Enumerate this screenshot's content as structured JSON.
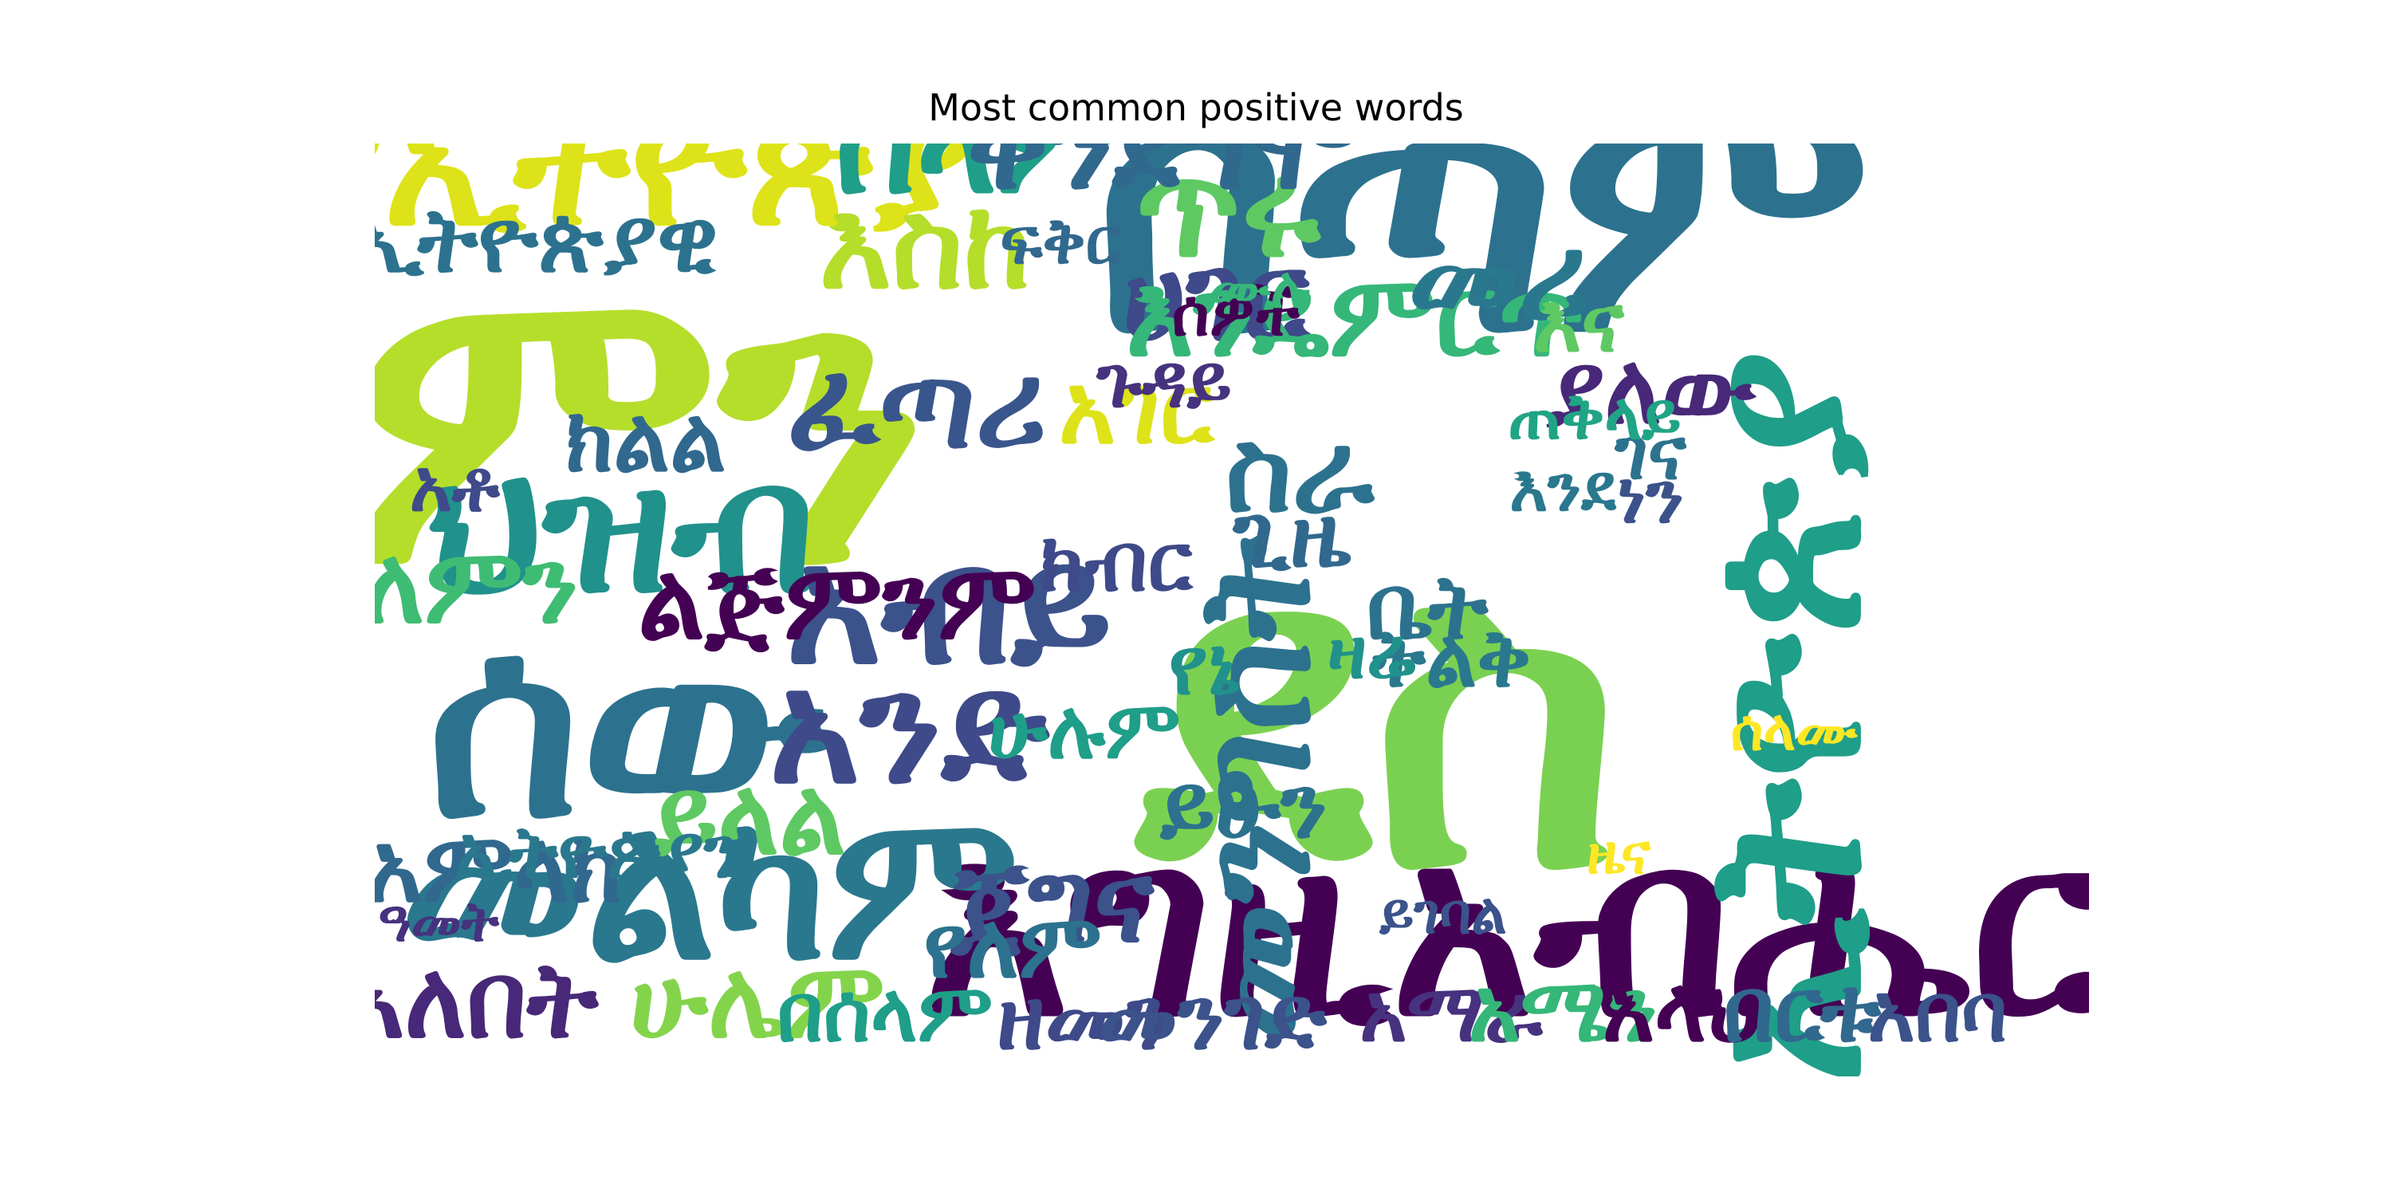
{
  "chart_data": {
    "type": "wordcloud",
    "title": "Most common positive words",
    "colormap": "viridis",
    "words": [
      {
        "text": "ደስ",
        "weight": 100,
        "color": "#7ad151"
      },
      {
        "text": "ምን",
        "weight": 92,
        "color": "#b5de2b"
      },
      {
        "text": "በጣም",
        "weight": 78,
        "color": "#2c728e"
      },
      {
        "text": "ሰው",
        "weight": 60,
        "color": "#2c728e"
      },
      {
        "text": "እግዚአብሔር",
        "weight": 56,
        "color": "#440154"
      },
      {
        "text": "ኢትዮጵያ",
        "weight": 48,
        "color": "#1f9e89"
      },
      {
        "text": "መልካም",
        "weight": 46,
        "color": "#2a788e"
      },
      {
        "text": "ህዝብ",
        "weight": 40,
        "color": "#21918c"
      },
      {
        "text": "የኢትዮጵያ",
        "weight": 38,
        "color": "#dde318"
      },
      {
        "text": "አብይ",
        "weight": 36,
        "color": "#3b528b"
      },
      {
        "text": "መንግስት",
        "weight": 34,
        "color": "#2c728e"
      },
      {
        "text": "አንድ",
        "weight": 34,
        "color": "#3e4a89"
      },
      {
        "text": "ሰላም",
        "weight": 30,
        "color": "#1f9e89"
      },
      {
        "text": "ጥሩ",
        "weight": 30,
        "color": "#5ec962"
      },
      {
        "text": "ቀንደግሞ",
        "weight": 26,
        "color": "#31688e"
      },
      {
        "text": "ፈጣሪ",
        "weight": 26,
        "color": "#39568c"
      },
      {
        "text": "እስከ",
        "weight": 26,
        "color": "#b5de2b"
      },
      {
        "text": "ሀገር",
        "weight": 26,
        "color": "#3e4a89"
      },
      {
        "text": "እንዴምርጥ",
        "weight": 24,
        "color": "#35b779"
      },
      {
        "text": "መሪ",
        "weight": 26,
        "color": "#2a788e"
      },
      {
        "text": "ሁሌም",
        "weight": 22,
        "color": "#84d44b"
      },
      {
        "text": "ልጅምንም",
        "weight": 22,
        "color": "#440154"
      },
      {
        "text": "ይላል",
        "weight": 22,
        "color": "#5ec962"
      },
      {
        "text": "ጀግና",
        "weight": 24,
        "color": "#3b528b"
      },
      {
        "text": "አለበት",
        "weight": 22,
        "color": "#482878"
      },
      {
        "text": "ስራ",
        "weight": 24,
        "color": "#2c728e"
      },
      {
        "text": "አምላክ",
        "weight": 20,
        "color": "#31688e"
      },
      {
        "text": "ለምን",
        "weight": 22,
        "color": "#3fbc73"
      },
      {
        "text": "አገር",
        "weight": 20,
        "color": "#dde318"
      },
      {
        "text": "ኢትዮጵያዊ",
        "weight": 18,
        "color": "#2c728e"
      },
      {
        "text": "ያለው",
        "weight": 20,
        "color": "#482878"
      },
      {
        "text": "ጊዜ",
        "weight": 18,
        "color": "#31688e"
      },
      {
        "text": "ቤት",
        "weight": 18,
        "color": "#2c728e"
      },
      {
        "text": "ትልቅ",
        "weight": 16,
        "color": "#2a788e"
      },
      {
        "text": "ዘመን",
        "weight": 18,
        "color": "#3e4a89"
      },
      {
        "text": "መንገድ",
        "weight": 18,
        "color": "#3b528b"
      },
      {
        "text": "አማራ",
        "weight": 16,
        "color": "#46327e"
      },
      {
        "text": "አሜን",
        "weight": 18,
        "color": "#35b779"
      },
      {
        "text": "አላህ",
        "weight": 18,
        "color": "#440154"
      },
      {
        "text": "በርቱ",
        "weight": 18,
        "color": "#31688e"
      },
      {
        "text": "አበባ",
        "weight": 16,
        "color": "#3b528b"
      },
      {
        "text": "ይሁን",
        "weight": 18,
        "color": "#2c728e"
      },
      {
        "text": "በሰላም",
        "weight": 16,
        "color": "#1f9e89"
      },
      {
        "text": "የለም",
        "weight": 18,
        "color": "#2c728e"
      },
      {
        "text": "ክልል",
        "weight": 18,
        "color": "#31688e"
      },
      {
        "text": "የኔ",
        "weight": 16,
        "color": "#21918c"
      },
      {
        "text": "ሁሉም",
        "weight": 16,
        "color": "#1f9e89"
      },
      {
        "text": "ክብር",
        "weight": 16,
        "color": "#3e4a89"
      },
      {
        "text": "ኢትዮጵያን",
        "weight": 14,
        "color": "#2a788e"
      },
      {
        "text": "ጉዳይ",
        "weight": 14,
        "color": "#46327e"
      },
      {
        "text": "ዜና",
        "weight": 10,
        "color": "#fde725"
      },
      {
        "text": "ገና",
        "weight": 14,
        "color": "#2c728e"
      },
      {
        "text": "ጠቅላይ",
        "weight": 12,
        "color": "#20a486"
      },
      {
        "text": "ዛሬ",
        "weight": 14,
        "color": "#21918c"
      },
      {
        "text": "ነን",
        "weight": 14,
        "color": "#3b528b"
      },
      {
        "text": "እና",
        "weight": 16,
        "color": "#5ec962"
      },
      {
        "text": "ሰዎች",
        "weight": 12,
        "color": "#440154"
      },
      {
        "text": "ፍቅር",
        "weight": 12,
        "color": "#31688e"
      },
      {
        "text": "አቶ",
        "weight": 14,
        "color": "#3e4a89"
      },
      {
        "text": "እንደ",
        "weight": 12,
        "color": "#2a788e"
      },
      {
        "text": "ሙሉ",
        "weight": 10,
        "color": "#35b779"
      },
      {
        "text": "ሰላሙ",
        "weight": 10,
        "color": "#fde725"
      },
      {
        "text": "ዓመት",
        "weight": 10,
        "color": "#46327e"
      },
      {
        "text": "ይገባል",
        "weight": 10,
        "color": "#3b528b"
      }
    ]
  }
}
